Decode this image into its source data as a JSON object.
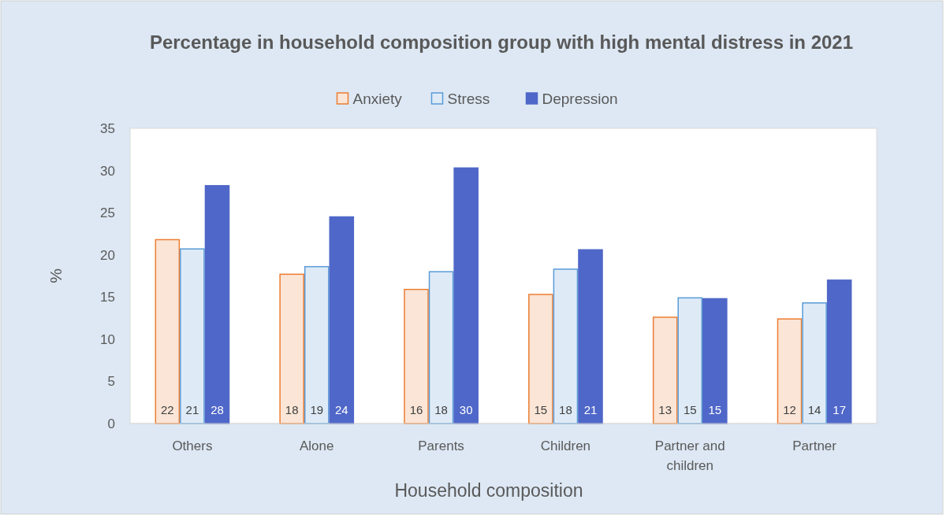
{
  "chart_data": {
    "type": "bar",
    "title": "Percentage in household composition group with high mental distress in 2021",
    "xlabel": "Household composition",
    "ylabel": "%",
    "categories": [
      "Others",
      "Alone",
      "Parents",
      "Children",
      "Partner and children",
      "Partner"
    ],
    "series": [
      {
        "name": "Anxiety",
        "color": "#fbe5d6",
        "values": [
          21.8,
          17.7,
          15.9,
          15.3,
          12.6,
          12.4
        ],
        "value_labels": [
          "22",
          "18",
          "16",
          "15",
          "13",
          "12"
        ]
      },
      {
        "name": "Stress",
        "color": "#deebf7",
        "values": [
          20.7,
          18.6,
          18.0,
          18.3,
          14.9,
          14.3
        ],
        "value_labels": [
          "21",
          "19",
          "18",
          "18",
          "15",
          "14"
        ]
      },
      {
        "name": "Depression",
        "color": "#4f67c8",
        "values": [
          28.2,
          24.5,
          30.3,
          20.6,
          14.8,
          17.0
        ],
        "value_labels": [
          "28",
          "24",
          "30",
          "21",
          "15",
          "17"
        ]
      }
    ],
    "ylim": [
      0,
      35
    ],
    "yticks": [
      0,
      5,
      10,
      15,
      20,
      25,
      30,
      35
    ],
    "grid": false,
    "legend": "top"
  }
}
